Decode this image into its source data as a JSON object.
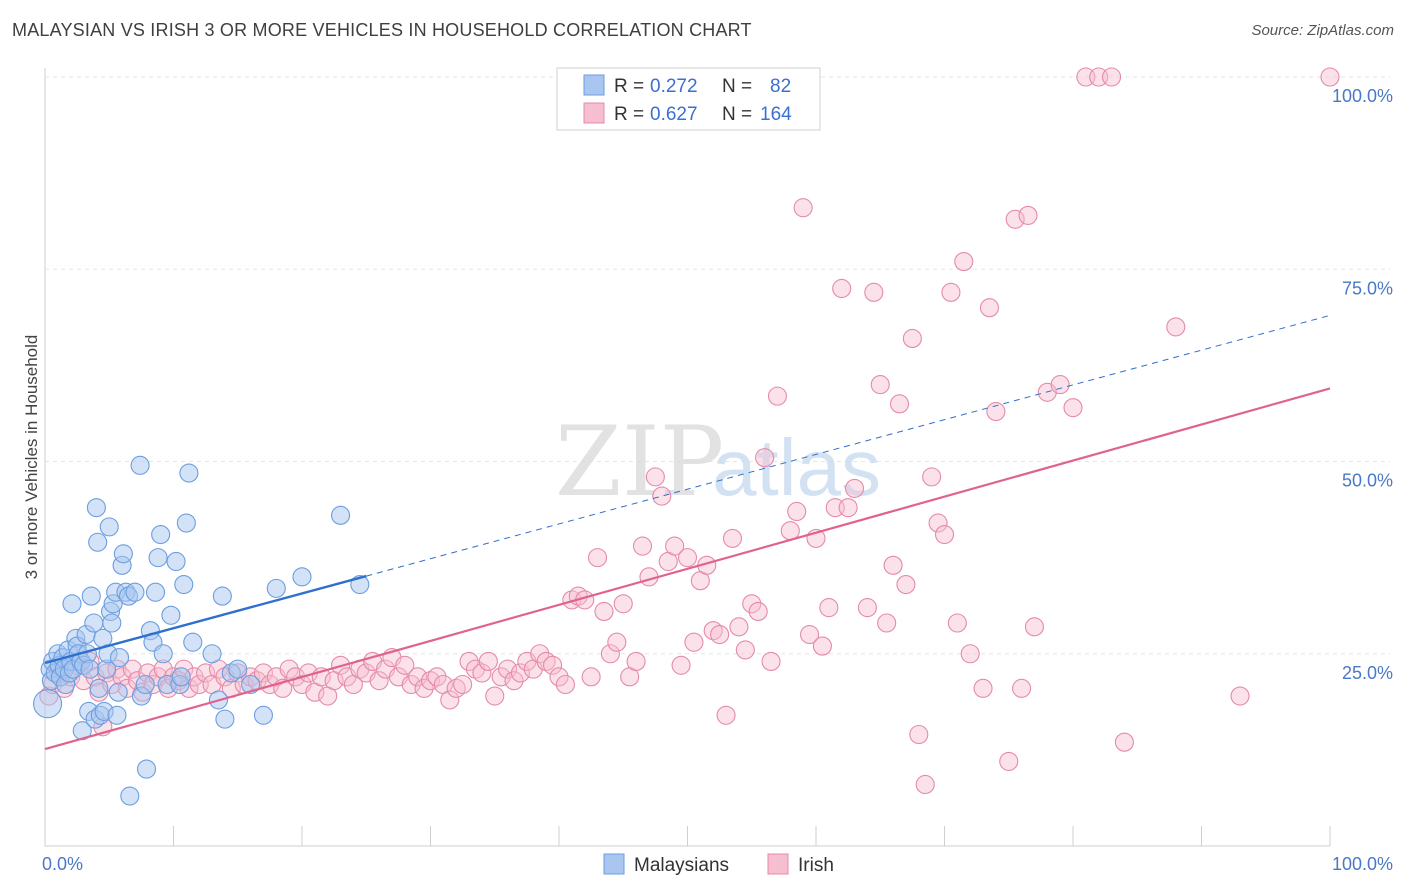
{
  "header": {
    "title": "MALAYSIAN VS IRISH 3 OR MORE VEHICLES IN HOUSEHOLD CORRELATION CHART",
    "source": "Source: ZipAtlas.com"
  },
  "watermark": {
    "zip": "ZIP",
    "atlas": "atlas"
  },
  "colors": {
    "malaysian_fill": "#a8c6f0",
    "malaysian_stroke": "#6b9ee0",
    "malaysian_line": "#2f6fce",
    "irish_fill": "#f6bfd0",
    "irish_stroke": "#e58aa8",
    "irish_line": "#e0638f",
    "grid": "#e6e6e6",
    "tick_text": "#4a78c8"
  },
  "legend": {
    "rows": [
      {
        "r_label": "R =",
        "r_value": "0.272",
        "n_label": "N =",
        "n_value": "82"
      },
      {
        "r_label": "R =",
        "r_value": "0.627",
        "n_label": "N =",
        "n_value": "164"
      }
    ]
  },
  "chart_data": {
    "type": "scatter",
    "title": "MALAYSIAN VS IRISH 3 OR MORE VEHICLES IN HOUSEHOLD CORRELATION CHART",
    "xlabel": "",
    "ylabel": "3 or more Vehicles in Household",
    "xlim": [
      0,
      100
    ],
    "ylim": [
      0,
      100
    ],
    "x_tick_labels": [
      "0.0%",
      "100.0%"
    ],
    "y_tick_values": [
      25,
      50,
      75,
      100
    ],
    "y_tick_labels": [
      "25.0%",
      "50.0%",
      "75.0%",
      "100.0%"
    ],
    "grid": true,
    "legend_position": "top-center",
    "series": [
      {
        "name": "Malaysians",
        "R": 0.272,
        "N": 82,
        "trend": {
          "x0": 0,
          "y0": 23.8,
          "x1": 25,
          "y1": 35.1,
          "dash_x1": 100,
          "dash_y1": 69.0
        },
        "points": [
          [
            0.2,
            18.5
          ],
          [
            0.4,
            23.0
          ],
          [
            0.5,
            21.5
          ],
          [
            0.6,
            24.0
          ],
          [
            0.8,
            22.5
          ],
          [
            1.0,
            25.0
          ],
          [
            1.1,
            23.5
          ],
          [
            1.2,
            22.0
          ],
          [
            1.4,
            24.5
          ],
          [
            1.5,
            23.0
          ],
          [
            1.6,
            21.0
          ],
          [
            1.8,
            25.5
          ],
          [
            1.9,
            22.5
          ],
          [
            2.0,
            24.0
          ],
          [
            2.1,
            31.5
          ],
          [
            2.2,
            23.0
          ],
          [
            2.4,
            27.0
          ],
          [
            2.5,
            26.0
          ],
          [
            2.6,
            25.0
          ],
          [
            2.8,
            24.0
          ],
          [
            2.9,
            15.0
          ],
          [
            3.0,
            23.5
          ],
          [
            3.2,
            27.5
          ],
          [
            3.3,
            25.0
          ],
          [
            3.4,
            17.5
          ],
          [
            3.5,
            23.0
          ],
          [
            3.6,
            32.5
          ],
          [
            3.8,
            29.0
          ],
          [
            3.9,
            16.5
          ],
          [
            4.0,
            44.0
          ],
          [
            4.1,
            39.5
          ],
          [
            4.2,
            20.5
          ],
          [
            4.3,
            17.0
          ],
          [
            4.5,
            27.0
          ],
          [
            4.6,
            17.5
          ],
          [
            4.8,
            23.0
          ],
          [
            4.9,
            25.0
          ],
          [
            5.0,
            41.5
          ],
          [
            5.1,
            30.5
          ],
          [
            5.2,
            29.0
          ],
          [
            5.3,
            31.5
          ],
          [
            5.5,
            33.0
          ],
          [
            5.6,
            17.0
          ],
          [
            5.7,
            20.0
          ],
          [
            5.8,
            24.5
          ],
          [
            6.0,
            36.5
          ],
          [
            6.1,
            38.0
          ],
          [
            6.3,
            33.0
          ],
          [
            6.5,
            32.5
          ],
          [
            6.6,
            6.5
          ],
          [
            7.0,
            33.0
          ],
          [
            7.4,
            49.5
          ],
          [
            7.5,
            19.5
          ],
          [
            7.8,
            21.0
          ],
          [
            7.9,
            10.0
          ],
          [
            8.2,
            28.0
          ],
          [
            8.4,
            26.5
          ],
          [
            8.6,
            33.0
          ],
          [
            8.8,
            37.5
          ],
          [
            9.0,
            40.5
          ],
          [
            9.2,
            25.0
          ],
          [
            9.5,
            21.0
          ],
          [
            9.8,
            30.0
          ],
          [
            10.2,
            37.0
          ],
          [
            10.5,
            21.0
          ],
          [
            10.6,
            22.0
          ],
          [
            10.8,
            34.0
          ],
          [
            11.0,
            42.0
          ],
          [
            11.2,
            48.5
          ],
          [
            11.5,
            26.5
          ],
          [
            13.0,
            25.0
          ],
          [
            13.5,
            19.0
          ],
          [
            13.8,
            32.5
          ],
          [
            14.0,
            16.5
          ],
          [
            14.5,
            22.5
          ],
          [
            15.0,
            23.0
          ],
          [
            16.0,
            21.0
          ],
          [
            17.0,
            17.0
          ],
          [
            18.0,
            33.5
          ],
          [
            20.0,
            35.0
          ],
          [
            23.0,
            43.0
          ],
          [
            24.5,
            34.0
          ]
        ]
      },
      {
        "name": "Irish",
        "R": 0.627,
        "N": 164,
        "trend": {
          "x0": 0,
          "y0": 12.6,
          "x1": 100,
          "y1": 59.5
        },
        "points": [
          [
            0.3,
            19.5
          ],
          [
            0.6,
            21.0
          ],
          [
            1.0,
            23.0
          ],
          [
            1.5,
            20.5
          ],
          [
            2.0,
            22.0
          ],
          [
            2.5,
            23.5
          ],
          [
            3.0,
            21.5
          ],
          [
            3.5,
            24.0
          ],
          [
            3.9,
            22.0
          ],
          [
            4.2,
            20.0
          ],
          [
            4.5,
            15.5
          ],
          [
            4.8,
            22.5
          ],
          [
            5.2,
            21.0
          ],
          [
            5.6,
            23.0
          ],
          [
            6.0,
            22.0
          ],
          [
            6.4,
            20.5
          ],
          [
            6.8,
            23.0
          ],
          [
            7.2,
            21.5
          ],
          [
            7.6,
            20.0
          ],
          [
            8.0,
            22.5
          ],
          [
            8.4,
            21.0
          ],
          [
            8.8,
            22.0
          ],
          [
            9.2,
            23.0
          ],
          [
            9.6,
            20.5
          ],
          [
            10.0,
            22.0
          ],
          [
            10.4,
            21.5
          ],
          [
            10.8,
            23.0
          ],
          [
            11.2,
            20.5
          ],
          [
            11.6,
            22.0
          ],
          [
            12.0,
            21.0
          ],
          [
            12.5,
            22.5
          ],
          [
            13.0,
            21.0
          ],
          [
            13.5,
            23.0
          ],
          [
            14.0,
            22.0
          ],
          [
            14.5,
            20.5
          ],
          [
            15.0,
            22.5
          ],
          [
            15.5,
            21.0
          ],
          [
            16.0,
            22.0
          ],
          [
            16.5,
            21.5
          ],
          [
            17.0,
            22.5
          ],
          [
            17.5,
            21.0
          ],
          [
            18.0,
            22.0
          ],
          [
            18.5,
            20.5
          ],
          [
            19.0,
            23.0
          ],
          [
            19.5,
            22.0
          ],
          [
            20.0,
            21.0
          ],
          [
            20.5,
            22.5
          ],
          [
            21.0,
            20.0
          ],
          [
            21.5,
            22.0
          ],
          [
            22.0,
            19.5
          ],
          [
            22.5,
            21.5
          ],
          [
            23.0,
            23.5
          ],
          [
            23.5,
            22.0
          ],
          [
            24.0,
            21.0
          ],
          [
            24.5,
            23.0
          ],
          [
            25.0,
            22.5
          ],
          [
            25.5,
            24.0
          ],
          [
            26.0,
            21.5
          ],
          [
            26.5,
            23.0
          ],
          [
            27.0,
            24.5
          ],
          [
            27.5,
            22.0
          ],
          [
            28.0,
            23.5
          ],
          [
            28.5,
            21.0
          ],
          [
            29.0,
            22.0
          ],
          [
            29.5,
            20.5
          ],
          [
            30.0,
            21.5
          ],
          [
            30.5,
            22.0
          ],
          [
            31.0,
            21.0
          ],
          [
            31.5,
            19.0
          ],
          [
            32.0,
            20.5
          ],
          [
            32.5,
            21.0
          ],
          [
            33.0,
            24.0
          ],
          [
            33.5,
            23.0
          ],
          [
            34.0,
            22.5
          ],
          [
            34.5,
            24.0
          ],
          [
            35.0,
            19.5
          ],
          [
            35.5,
            22.0
          ],
          [
            36.0,
            23.0
          ],
          [
            36.5,
            21.5
          ],
          [
            37.0,
            22.5
          ],
          [
            37.5,
            24.0
          ],
          [
            38.0,
            23.0
          ],
          [
            38.5,
            25.0
          ],
          [
            39.0,
            24.0
          ],
          [
            39.5,
            23.5
          ],
          [
            40.0,
            22.0
          ],
          [
            40.5,
            21.0
          ],
          [
            41.0,
            32.0
          ],
          [
            41.5,
            32.5
          ],
          [
            42.0,
            32.0
          ],
          [
            42.5,
            22.0
          ],
          [
            43.0,
            37.5
          ],
          [
            43.5,
            30.5
          ],
          [
            44.0,
            25.0
          ],
          [
            44.5,
            26.5
          ],
          [
            45.0,
            31.5
          ],
          [
            45.5,
            22.0
          ],
          [
            46.0,
            24.0
          ],
          [
            46.5,
            39.0
          ],
          [
            47.0,
            35.0
          ],
          [
            47.5,
            48.0
          ],
          [
            48.0,
            45.5
          ],
          [
            48.5,
            37.0
          ],
          [
            49.0,
            39.0
          ],
          [
            49.5,
            23.5
          ],
          [
            50.0,
            37.5
          ],
          [
            50.5,
            26.5
          ],
          [
            51.0,
            34.5
          ],
          [
            51.5,
            36.5
          ],
          [
            52.0,
            28.0
          ],
          [
            52.5,
            27.5
          ],
          [
            53.0,
            17.0
          ],
          [
            53.5,
            40.0
          ],
          [
            54.0,
            28.5
          ],
          [
            54.5,
            25.5
          ],
          [
            55.0,
            31.5
          ],
          [
            55.5,
            30.5
          ],
          [
            56.0,
            50.5
          ],
          [
            56.5,
            24.0
          ],
          [
            57.0,
            58.5
          ],
          [
            58.0,
            41.0
          ],
          [
            58.5,
            43.5
          ],
          [
            59.0,
            83.0
          ],
          [
            59.5,
            27.5
          ],
          [
            60.0,
            40.0
          ],
          [
            60.5,
            26.0
          ],
          [
            61.0,
            31.0
          ],
          [
            61.5,
            44.0
          ],
          [
            62.0,
            72.5
          ],
          [
            62.5,
            44.0
          ],
          [
            63.0,
            46.5
          ],
          [
            64.0,
            31.0
          ],
          [
            64.5,
            72.0
          ],
          [
            65.0,
            60.0
          ],
          [
            65.5,
            29.0
          ],
          [
            66.0,
            36.5
          ],
          [
            66.5,
            57.5
          ],
          [
            67.0,
            34.0
          ],
          [
            67.5,
            66.0
          ],
          [
            68.0,
            14.5
          ],
          [
            68.5,
            8.0
          ],
          [
            69.0,
            48.0
          ],
          [
            69.5,
            42.0
          ],
          [
            70.0,
            40.5
          ],
          [
            70.5,
            72.0
          ],
          [
            71.0,
            29.0
          ],
          [
            71.5,
            76.0
          ],
          [
            72.0,
            25.0
          ],
          [
            73.0,
            20.5
          ],
          [
            73.5,
            70.0
          ],
          [
            74.0,
            56.5
          ],
          [
            75.0,
            11.0
          ],
          [
            75.5,
            81.5
          ],
          [
            76.0,
            20.5
          ],
          [
            76.5,
            82.0
          ],
          [
            77.0,
            28.5
          ],
          [
            78.0,
            59.0
          ],
          [
            79.0,
            60.0
          ],
          [
            80.0,
            57.0
          ],
          [
            81.0,
            100.0
          ],
          [
            82.0,
            100.0
          ],
          [
            83.0,
            100.0
          ],
          [
            84.0,
            13.5
          ],
          [
            88.0,
            67.5
          ],
          [
            93.0,
            19.5
          ],
          [
            100.0,
            100.0
          ]
        ]
      }
    ]
  },
  "bottom_legend": {
    "items": [
      "Malaysians",
      "Irish"
    ]
  }
}
